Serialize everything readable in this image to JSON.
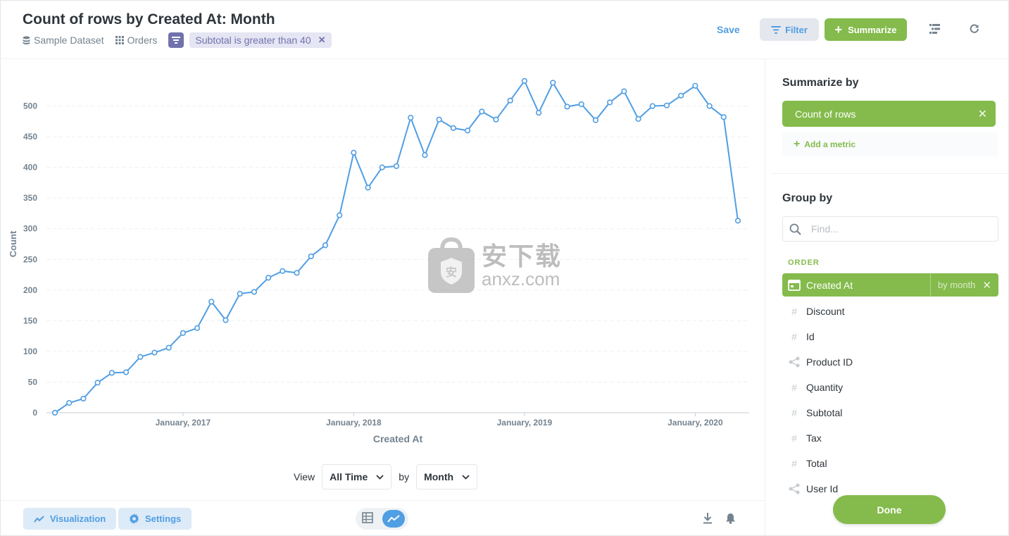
{
  "header": {
    "title": "Count of rows by Created At: Month",
    "breadcrumb": {
      "dataset": "Sample Dataset",
      "table": "Orders",
      "filter": "Subtotal is greater than 40"
    },
    "save_label": "Save",
    "filter_label": "Filter",
    "summarize_label": "Summarize"
  },
  "chart_data": {
    "type": "line",
    "xlabel": "Created At",
    "ylabel": "Count",
    "ylim": [
      0,
      550
    ],
    "yticks": [
      0,
      50,
      100,
      150,
      200,
      250,
      300,
      350,
      400,
      450,
      500
    ],
    "xtick_labels": [
      "January, 2017",
      "January, 2018",
      "January, 2019",
      "January, 2020"
    ],
    "x_start": "2016-04",
    "x_end": "2020-04",
    "series": [
      {
        "values": [
          0,
          16,
          23,
          49,
          65,
          66,
          91,
          98,
          106,
          130,
          138,
          181,
          151,
          194,
          197,
          220,
          231,
          228,
          255,
          273,
          322,
          424,
          367,
          400,
          402,
          481,
          420,
          478,
          464,
          460,
          491,
          478,
          509,
          541,
          489,
          538,
          499,
          503,
          477,
          506,
          524,
          479,
          500,
          501,
          517,
          533,
          500,
          482,
          313
        ]
      }
    ],
    "line_color": "#509ee3",
    "grid": true
  },
  "controls": {
    "view_label": "View",
    "by_label": "by",
    "range_value": "All Time",
    "granularity_value": "Month"
  },
  "footer": {
    "visualization_label": "Visualization",
    "settings_label": "Settings"
  },
  "sidebar": {
    "summarize_title": "Summarize by",
    "metric": "Count of rows",
    "add_metric": "Add a metric",
    "group_title": "Group by",
    "find_placeholder": "Find...",
    "section": "ORDER",
    "selected_field": {
      "name": "Created At",
      "bucket": "by month"
    },
    "fields": [
      {
        "name": "Discount",
        "icon": "hash-icon"
      },
      {
        "name": "Id",
        "icon": "hash-icon"
      },
      {
        "name": "Product ID",
        "icon": "connection-icon"
      },
      {
        "name": "Quantity",
        "icon": "hash-icon"
      },
      {
        "name": "Subtotal",
        "icon": "hash-icon"
      },
      {
        "name": "Tax",
        "icon": "hash-icon"
      },
      {
        "name": "Total",
        "icon": "hash-icon"
      },
      {
        "name": "User Id",
        "icon": "connection-icon"
      }
    ],
    "done_label": "Done"
  },
  "watermark": {
    "cn": "安下载",
    "en": "anxz.com"
  },
  "colors": {
    "brand": "#509ee3",
    "summarize": "#84bb4c",
    "filter": "#7172ad"
  }
}
